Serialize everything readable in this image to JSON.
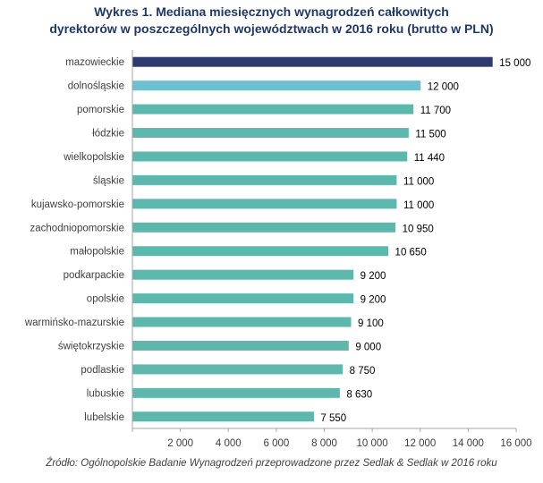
{
  "title_line1": "Wykres 1. Mediana miesięcznych wynagrodzeń całkowitych",
  "title_line2": "dyrektorów w poszczególnych województwach w 2016 roku (brutto w PLN)",
  "source": "Źródło: Ogólnopolskie Badanie Wynagrodzeń przeprowadzone przez Sedlak & Sedlak w 2016 roku",
  "colors": {
    "highlight_top": "#2e3a6e",
    "highlight_second": "#6fbfd1",
    "default_bar": "#5cb8ad",
    "axis": "#a6a6a6",
    "text": "#404040",
    "title": "#1f3864"
  },
  "chart_data": {
    "type": "bar",
    "orientation": "horizontal",
    "categories": [
      "mazowieckie",
      "dolnośląskie",
      "pomorskie",
      "łódzkie",
      "wielkopolskie",
      "śląskie",
      "kujawsko-pomorskie",
      "zachodniopomorskie",
      "małopolskie",
      "podkarpackie",
      "opolskie",
      "warmińsko-mazurskie",
      "świętokrzyskie",
      "podlaskie",
      "lubuskie",
      "lubelskie"
    ],
    "values": [
      15000,
      12000,
      11700,
      11500,
      11440,
      11000,
      11000,
      10950,
      10650,
      9200,
      9200,
      9100,
      9000,
      8750,
      8630,
      7550
    ],
    "value_labels": [
      "15 000",
      "12 000",
      "11 700",
      "11 500",
      "11 440",
      "11 000",
      "11 000",
      "10 950",
      "10 650",
      "9 200",
      "9 200",
      "9 100",
      "9 000",
      "8 750",
      "8 630",
      "7 550"
    ],
    "x_ticks": [
      2000,
      4000,
      6000,
      8000,
      10000,
      12000,
      14000,
      16000
    ],
    "x_tick_labels": [
      "2 000",
      "4 000",
      "6 000",
      "8 000",
      "10 000",
      "12 000",
      "14 000",
      "16 000"
    ],
    "xlim": [
      0,
      16000
    ],
    "grid": false,
    "legend": "none"
  }
}
